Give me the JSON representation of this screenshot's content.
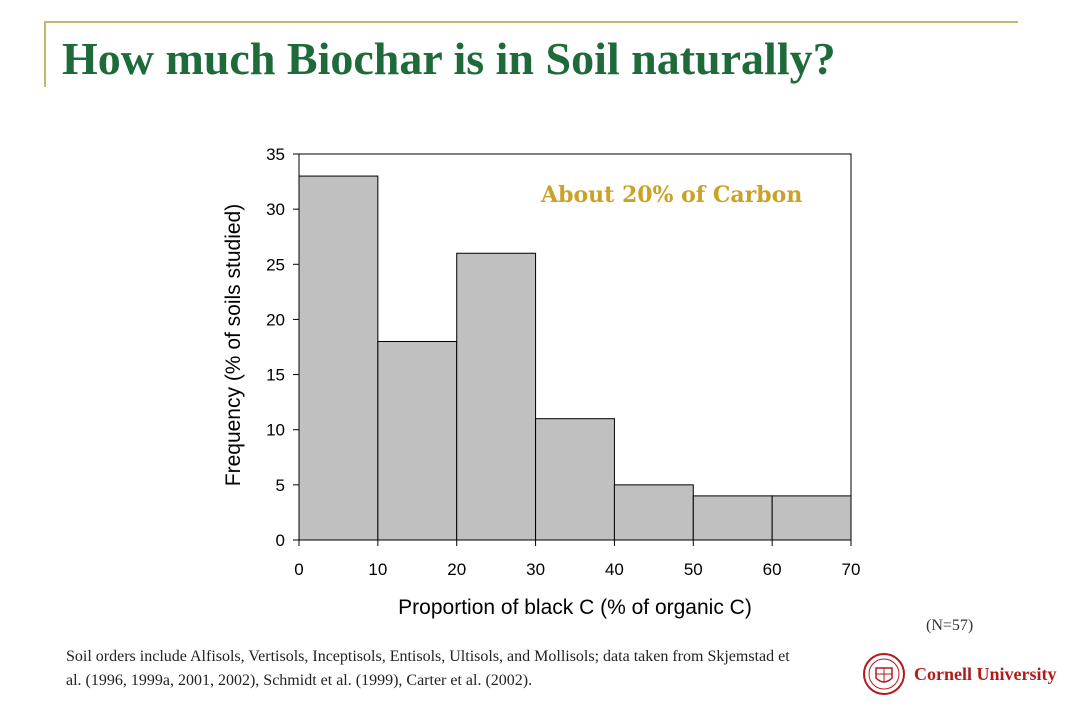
{
  "slide": {
    "title": "How much Biochar is in Soil naturally?",
    "annotation": "About 20% of Carbon",
    "sample_size": "(N=57)",
    "footnote": "Soil orders include Alfisols, Vertisols, Inceptisols, Entisols, Ultisols, and Mollisols; data taken from Skjemstad et al. (1996, 1999a, 2001, 2002), Schmidt et al. (1999), Carter et al. (2002).",
    "logo_text": "Cornell University"
  },
  "colors": {
    "title": "#1e6a3a",
    "annotation": "#c9a227",
    "bar_fill": "#c0c0c0",
    "frame": "#c9b56a",
    "logo": "#b31b1b"
  },
  "chart_data": {
    "type": "bar",
    "subtype": "histogram",
    "bin_edges": [
      0,
      10,
      20,
      30,
      40,
      50,
      60,
      70
    ],
    "values": [
      33,
      18,
      26,
      11,
      5,
      4,
      4
    ],
    "xlabel": "Proportion of black C (% of organic C)",
    "ylabel": "Frequency (% of soils studied)",
    "xlim": [
      0,
      70
    ],
    "ylim": [
      0,
      35
    ],
    "x_ticks": [
      0,
      10,
      20,
      30,
      40,
      50,
      60,
      70
    ],
    "y_ticks": [
      0,
      5,
      10,
      15,
      20,
      25,
      30,
      35
    ],
    "grid": false,
    "legend": "none"
  }
}
